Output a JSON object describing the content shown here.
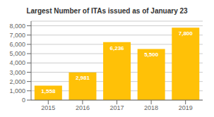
{
  "chart_data": {
    "type": "bar",
    "title": "Largest Number of ITAs issued as of January 23",
    "categories": [
      "2015",
      "2016",
      "2017",
      "2018",
      "2019"
    ],
    "values": [
      1558,
      2981,
      6236,
      5500,
      7800
    ],
    "value_labels": [
      "1,558",
      "2,981",
      "6,236",
      "5,500",
      "7,800"
    ],
    "color": "#FFC107",
    "ylim": [
      0,
      8500
    ],
    "yticks": [
      0,
      {
        "value": 1000,
        "label": "1,000"
      },
      {
        "value": 2000,
        "label": "2,000"
      },
      {
        "value": 3000,
        "label": "3,000"
      },
      {
        "value": 4000,
        "label": "4,000"
      },
      {
        "value": 5000,
        "label": "5,000"
      },
      {
        "value": 6000,
        "label": "6,000"
      },
      {
        "value": 7000,
        "label": "7,000"
      },
      {
        "value": 8000,
        "label": "8,000"
      }
    ],
    "grid": true,
    "data_labels": true
  }
}
